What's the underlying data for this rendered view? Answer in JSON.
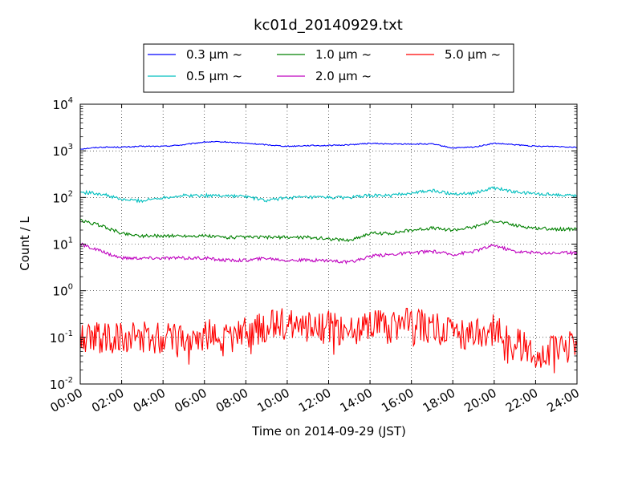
{
  "chart_data": {
    "type": "line",
    "title": "kc01d_20140929.txt",
    "xlabel": "Time on 2014-09-29 (JST)",
    "ylabel": "Count / L",
    "y_scale": "log",
    "ylim": [
      0.01,
      10000
    ],
    "xlim": [
      "00:00",
      "24:00"
    ],
    "x_ticks": [
      "00:00",
      "02:00",
      "04:00",
      "06:00",
      "08:00",
      "10:00",
      "12:00",
      "14:00",
      "16:00",
      "18:00",
      "20:00",
      "22:00",
      "24:00"
    ],
    "y_ticks": [
      {
        "base": "10",
        "exp": "-2"
      },
      {
        "base": "10",
        "exp": "-1"
      },
      {
        "base": "10",
        "exp": "0"
      },
      {
        "base": "10",
        "exp": "1"
      },
      {
        "base": "10",
        "exp": "2"
      },
      {
        "base": "10",
        "exp": "3"
      },
      {
        "base": "10",
        "exp": "4"
      }
    ],
    "grid": true,
    "legend_position": "top-center",
    "x_hours": [
      0,
      1,
      2,
      3,
      4,
      5,
      6,
      7,
      8,
      9,
      10,
      11,
      12,
      13,
      14,
      15,
      16,
      17,
      18,
      19,
      20,
      21,
      22,
      23,
      24
    ],
    "series": [
      {
        "name": "0.3 μm ~",
        "color": "#0000ff",
        "values": [
          1100,
          1200,
          1200,
          1250,
          1250,
          1350,
          1550,
          1550,
          1450,
          1350,
          1250,
          1300,
          1300,
          1350,
          1450,
          1400,
          1400,
          1400,
          1150,
          1200,
          1450,
          1350,
          1250,
          1250,
          1200
        ]
      },
      {
        "name": "0.5 μm ~",
        "color": "#00bfbf",
        "values": [
          130,
          120,
          90,
          85,
          100,
          110,
          110,
          110,
          105,
          85,
          100,
          100,
          100,
          100,
          110,
          110,
          125,
          140,
          120,
          125,
          160,
          130,
          120,
          115,
          110
        ]
      },
      {
        "name": "1.0 μm ~",
        "color": "#008000",
        "values": [
          32,
          25,
          17,
          15,
          15,
          15,
          15,
          14,
          14,
          14,
          14,
          14,
          13,
          12,
          17,
          17,
          20,
          22,
          20,
          23,
          32,
          25,
          22,
          21,
          21
        ]
      },
      {
        "name": "2.0 μm ~",
        "color": "#bf00bf",
        "values": [
          10,
          7,
          5,
          5,
          5,
          5,
          5,
          4.5,
          4.5,
          5,
          4.5,
          4.5,
          4.5,
          4,
          5.5,
          6,
          6.5,
          7,
          6,
          7,
          9.5,
          7,
          6.5,
          6.5,
          6.5
        ]
      },
      {
        "name": "5.0 μm ~",
        "color": "#ff0000",
        "values": [
          0.09,
          0.1,
          0.1,
          0.1,
          0.09,
          0.1,
          0.11,
          0.11,
          0.12,
          0.18,
          0.2,
          0.17,
          0.17,
          0.14,
          0.18,
          0.16,
          0.2,
          0.16,
          0.12,
          0.12,
          0.14,
          0.08,
          0.05,
          0.05,
          0.07
        ]
      }
    ]
  }
}
